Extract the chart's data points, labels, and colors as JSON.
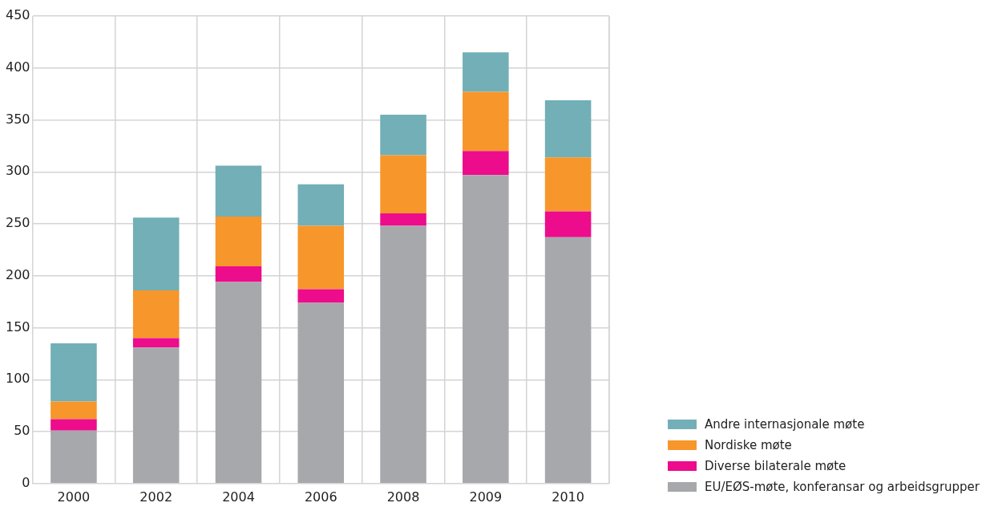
{
  "chart_data": {
    "type": "bar",
    "stacked": true,
    "categories": [
      "2000",
      "2002",
      "2004",
      "2006",
      "2008",
      "2009",
      "2010"
    ],
    "series": [
      {
        "name": "EU/EØS-møte, konferansar og arbeidsgrupper",
        "color": "#a7a8ac",
        "values": [
          51,
          131,
          194,
          174,
          248,
          297,
          237
        ]
      },
      {
        "name": "Diverse bilaterale møte",
        "color": "#ec0c8c",
        "values": [
          11,
          9,
          15,
          13,
          12,
          23,
          25
        ]
      },
      {
        "name": "Nordiske møte",
        "color": "#f7962a",
        "values": [
          17,
          46,
          48,
          61,
          56,
          57,
          52
        ]
      },
      {
        "name": "Andre internasjonale møte",
        "color": "#72afb6",
        "values": [
          56,
          70,
          49,
          40,
          39,
          38,
          55
        ]
      }
    ],
    "ylim": [
      0,
      450
    ],
    "yticks": [
      0,
      50,
      100,
      150,
      200,
      250,
      300,
      350,
      400,
      450
    ],
    "grid": true,
    "legend": "bottom right"
  }
}
